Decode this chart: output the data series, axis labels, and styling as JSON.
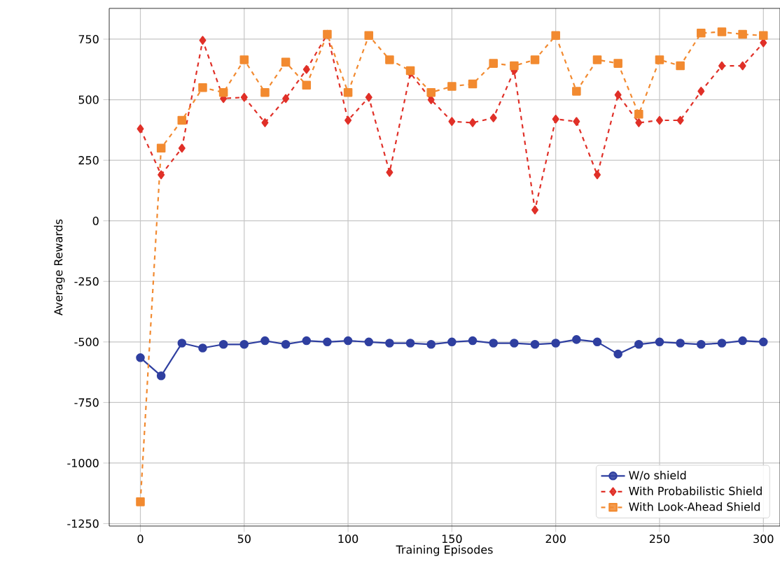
{
  "chart_data": {
    "type": "line",
    "xlabel": "Training Episodes",
    "ylabel": "Average Rewards",
    "x": [
      0,
      10,
      20,
      30,
      40,
      50,
      60,
      70,
      80,
      90,
      100,
      110,
      120,
      130,
      140,
      150,
      160,
      170,
      180,
      190,
      200,
      210,
      220,
      230,
      240,
      250,
      260,
      270,
      280,
      290,
      300
    ],
    "series": [
      {
        "name": "W/o shield",
        "color": "#2f3fa0",
        "marker": "circle",
        "line_style": "solid",
        "values": [
          -565,
          -640,
          -505,
          -525,
          -510,
          -510,
          -495,
          -510,
          -495,
          -500,
          -495,
          -500,
          -505,
          -505,
          -510,
          -500,
          -495,
          -505,
          -505,
          -510,
          -505,
          -490,
          -500,
          -550,
          -510,
          -500,
          -505,
          -510,
          -505,
          -495,
          -500
        ]
      },
      {
        "name": "With Probabilistic Shield",
        "color": "#e03028",
        "marker": "diamond",
        "line_style": "dashed",
        "values": [
          380,
          190,
          300,
          745,
          505,
          510,
          405,
          505,
          625,
          770,
          415,
          510,
          200,
          610,
          500,
          410,
          405,
          425,
          620,
          45,
          420,
          410,
          190,
          520,
          405,
          415,
          415,
          535,
          640,
          640,
          735
        ]
      },
      {
        "name": "With Look-Ahead Shield",
        "color": "#f28a30",
        "marker": "square",
        "line_style": "dashed",
        "values": [
          -1160,
          300,
          415,
          550,
          530,
          665,
          530,
          655,
          560,
          770,
          530,
          765,
          665,
          620,
          530,
          555,
          565,
          650,
          640,
          665,
          765,
          535,
          665,
          650,
          440,
          665,
          640,
          775,
          780,
          770,
          765
        ]
      }
    ],
    "xlim": [
      -15,
      308
    ],
    "ylim": [
      -1260,
      877
    ],
    "xticks": [
      0,
      50,
      100,
      150,
      200,
      250,
      300
    ],
    "yticks": [
      -1250,
      -1000,
      -750,
      -500,
      -250,
      0,
      250,
      500,
      750
    ],
    "grid": true,
    "legend": "bottom right"
  }
}
